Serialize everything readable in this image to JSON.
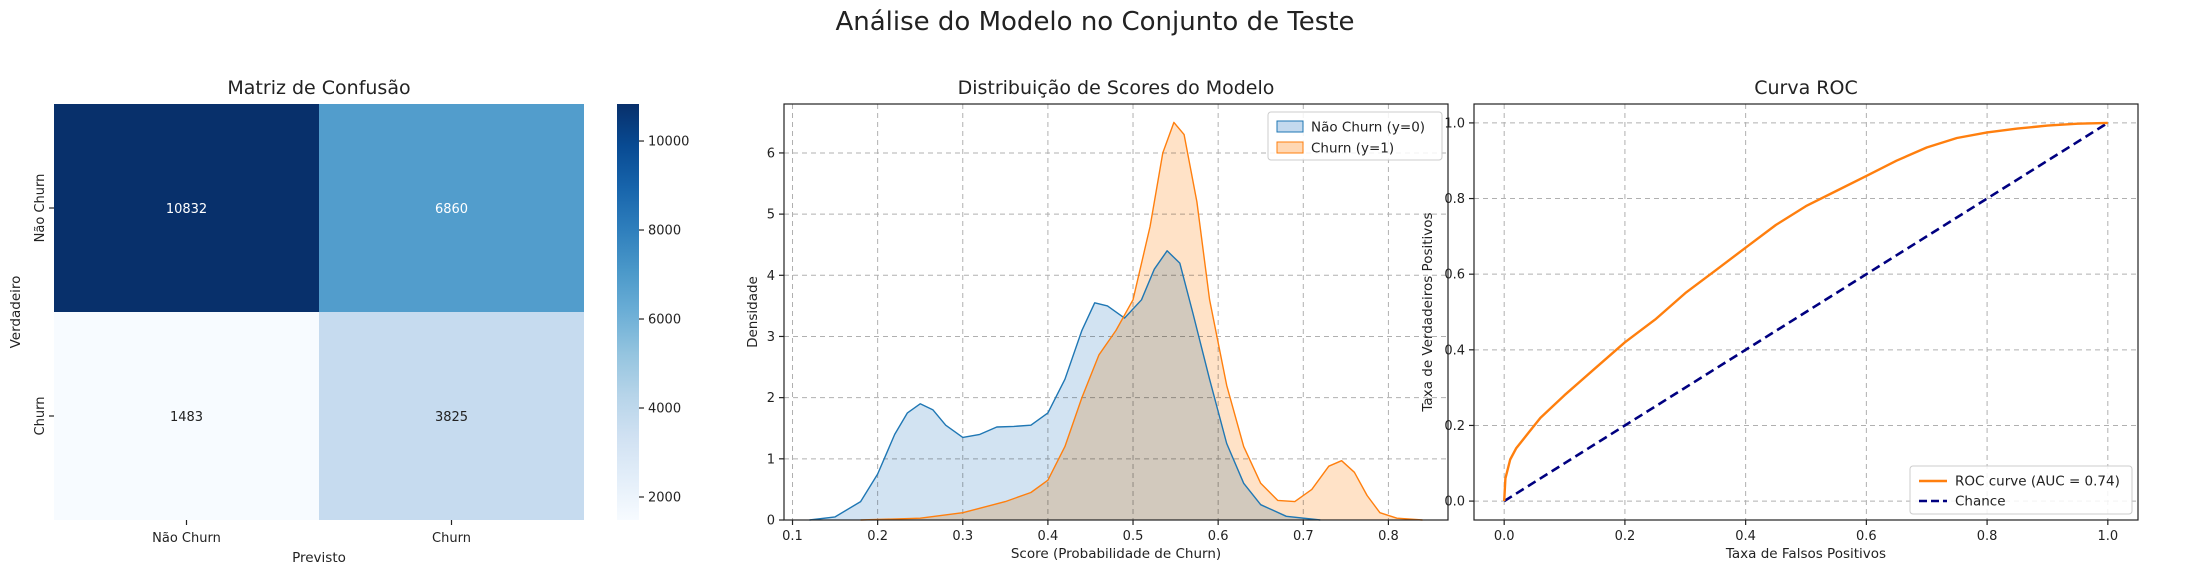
{
  "figure": {
    "title": "Análise do Modelo no Conjunto de Teste"
  },
  "chart_data": [
    {
      "type": "heatmap",
      "title": "Matriz de Confusão",
      "xlabel": "Previsto",
      "ylabel": "Verdadeiro",
      "x_categories": [
        "Não Churn",
        "Churn"
      ],
      "y_categories": [
        "Não Churn",
        "Churn"
      ],
      "values": [
        [
          10832,
          6860
        ],
        [
          1483,
          3825
        ]
      ],
      "colormap": "Blues",
      "colorbar": {
        "min": 1483,
        "max": 10832,
        "ticks": [
          2000,
          4000,
          6000,
          8000,
          10000
        ]
      }
    },
    {
      "type": "area",
      "title": "Distribuição de Scores do Modelo",
      "xlabel": "Score (Probabilidade de Churn)",
      "ylabel": "Densidade",
      "xlim": [
        0.09,
        0.87
      ],
      "ylim": [
        0,
        6.8
      ],
      "xticks": [
        0.1,
        0.2,
        0.3,
        0.4,
        0.5,
        0.6,
        0.7,
        0.8
      ],
      "yticks": [
        0,
        1,
        2,
        3,
        4,
        5,
        6
      ],
      "grid": true,
      "legend": "top-right",
      "series": [
        {
          "name": "Não Churn (y=0)",
          "color": "#1f77b4",
          "fill": "#c3d9ee",
          "points": [
            [
              0.12,
              0
            ],
            [
              0.15,
              0.05
            ],
            [
              0.18,
              0.3
            ],
            [
              0.2,
              0.75
            ],
            [
              0.22,
              1.4
            ],
            [
              0.235,
              1.75
            ],
            [
              0.25,
              1.9
            ],
            [
              0.265,
              1.8
            ],
            [
              0.28,
              1.55
            ],
            [
              0.3,
              1.35
            ],
            [
              0.32,
              1.4
            ],
            [
              0.34,
              1.52
            ],
            [
              0.36,
              1.53
            ],
            [
              0.38,
              1.55
            ],
            [
              0.4,
              1.75
            ],
            [
              0.42,
              2.3
            ],
            [
              0.44,
              3.1
            ],
            [
              0.455,
              3.55
            ],
            [
              0.47,
              3.5
            ],
            [
              0.49,
              3.3
            ],
            [
              0.51,
              3.6
            ],
            [
              0.525,
              4.1
            ],
            [
              0.54,
              4.4
            ],
            [
              0.555,
              4.2
            ],
            [
              0.57,
              3.4
            ],
            [
              0.59,
              2.3
            ],
            [
              0.61,
              1.25
            ],
            [
              0.63,
              0.6
            ],
            [
              0.65,
              0.25
            ],
            [
              0.68,
              0.06
            ],
            [
              0.72,
              0
            ]
          ]
        },
        {
          "name": "Churn (y=1)",
          "color": "#ff7f0e",
          "fill": "#ffd8b4",
          "points": [
            [
              0.18,
              0
            ],
            [
              0.25,
              0.03
            ],
            [
              0.3,
              0.12
            ],
            [
              0.35,
              0.3
            ],
            [
              0.38,
              0.45
            ],
            [
              0.4,
              0.65
            ],
            [
              0.42,
              1.2
            ],
            [
              0.44,
              2.0
            ],
            [
              0.46,
              2.7
            ],
            [
              0.48,
              3.1
            ],
            [
              0.5,
              3.6
            ],
            [
              0.52,
              4.8
            ],
            [
              0.535,
              6.0
            ],
            [
              0.548,
              6.5
            ],
            [
              0.56,
              6.3
            ],
            [
              0.575,
              5.2
            ],
            [
              0.59,
              3.6
            ],
            [
              0.61,
              2.2
            ],
            [
              0.63,
              1.2
            ],
            [
              0.65,
              0.6
            ],
            [
              0.67,
              0.32
            ],
            [
              0.69,
              0.3
            ],
            [
              0.71,
              0.5
            ],
            [
              0.73,
              0.88
            ],
            [
              0.745,
              0.97
            ],
            [
              0.76,
              0.78
            ],
            [
              0.775,
              0.4
            ],
            [
              0.79,
              0.12
            ],
            [
              0.81,
              0.03
            ],
            [
              0.84,
              0
            ]
          ]
        }
      ]
    },
    {
      "type": "line",
      "title": "Curva ROC",
      "xlabel": "Taxa de Falsos Positivos",
      "ylabel": "Taxa de Verdadeiros Positivos",
      "xlim": [
        -0.05,
        1.05
      ],
      "ylim": [
        -0.05,
        1.05
      ],
      "xticks": [
        0.0,
        0.2,
        0.4,
        0.6,
        0.8,
        1.0
      ],
      "yticks": [
        0.0,
        0.2,
        0.4,
        0.6,
        0.8,
        1.0
      ],
      "grid": true,
      "legend": "bottom-right",
      "series": [
        {
          "name": "ROC curve (AUC = 0.74)",
          "color": "#ff7f0e",
          "dash": false,
          "points": [
            [
              0,
              0
            ],
            [
              0.002,
              0.06
            ],
            [
              0.01,
              0.11
            ],
            [
              0.02,
              0.14
            ],
            [
              0.04,
              0.18
            ],
            [
              0.06,
              0.22
            ],
            [
              0.08,
              0.25
            ],
            [
              0.1,
              0.28
            ],
            [
              0.15,
              0.35
            ],
            [
              0.2,
              0.42
            ],
            [
              0.25,
              0.48
            ],
            [
              0.3,
              0.55
            ],
            [
              0.35,
              0.61
            ],
            [
              0.4,
              0.67
            ],
            [
              0.45,
              0.73
            ],
            [
              0.5,
              0.78
            ],
            [
              0.55,
              0.82
            ],
            [
              0.6,
              0.86
            ],
            [
              0.65,
              0.9
            ],
            [
              0.7,
              0.935
            ],
            [
              0.75,
              0.96
            ],
            [
              0.8,
              0.975
            ],
            [
              0.85,
              0.985
            ],
            [
              0.9,
              0.993
            ],
            [
              0.95,
              0.998
            ],
            [
              1,
              1
            ]
          ]
        },
        {
          "name": "Chance",
          "color": "#000080",
          "dash": true,
          "points": [
            [
              0,
              0
            ],
            [
              1,
              1
            ]
          ]
        }
      ]
    }
  ]
}
